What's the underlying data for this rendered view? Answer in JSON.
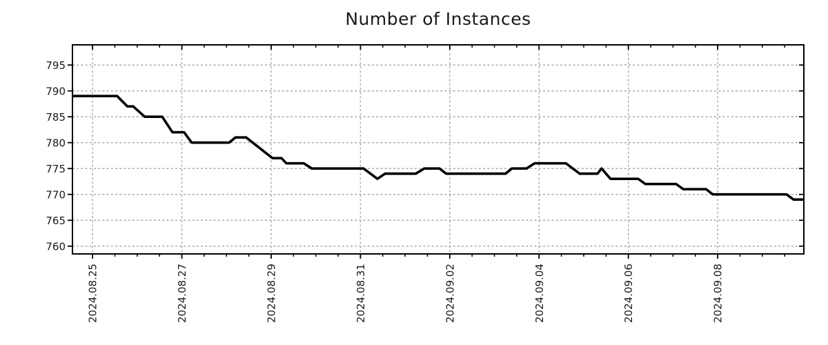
{
  "page": {
    "background": "#ffffff"
  },
  "chart_data": {
    "type": "line",
    "title": "Number of Instances",
    "xlabel": "",
    "ylabel": "",
    "legend": "none",
    "grid": {
      "show": true,
      "color": "#a8a8a8",
      "dash": "3 3.2"
    },
    "border_color": "#000000",
    "text_color": "#1a1a1a",
    "y_axis": {
      "range": [
        758.5,
        798.9
      ],
      "ticks": [
        760,
        765,
        770,
        775,
        780,
        785,
        790,
        795
      ]
    },
    "x_axis": {
      "unit": "days since 2024.08.25 00:00",
      "range": [
        -0.45,
        15.93
      ],
      "minor_tick_interval": 0.5,
      "label_rotation": -90,
      "major_ticks": [
        {
          "d": 0,
          "label": "2024.08.25"
        },
        {
          "d": 2,
          "label": "2024.08.27"
        },
        {
          "d": 4,
          "label": "2024.08.29"
        },
        {
          "d": 6,
          "label": "2024.08.31"
        },
        {
          "d": 8,
          "label": "2024.09.02"
        },
        {
          "d": 10,
          "label": "2024.09.04"
        },
        {
          "d": 12,
          "label": "2024.09.06"
        },
        {
          "d": 14,
          "label": "2024.09.08"
        }
      ]
    },
    "series": [
      {
        "name": "instances",
        "color": "#000000",
        "line_width": 3.6,
        "points": [
          [
            -0.45,
            789
          ],
          [
            0.55,
            789
          ],
          [
            0.78,
            787
          ],
          [
            0.91,
            787
          ],
          [
            1.17,
            785
          ],
          [
            1.56,
            785
          ],
          [
            1.79,
            782
          ],
          [
            2.05,
            782
          ],
          [
            2.22,
            780
          ],
          [
            3.06,
            780
          ],
          [
            3.2,
            781
          ],
          [
            3.44,
            781
          ],
          [
            4.03,
            777
          ],
          [
            4.23,
            777
          ],
          [
            4.34,
            776
          ],
          [
            4.73,
            776
          ],
          [
            4.91,
            775
          ],
          [
            6.07,
            775
          ],
          [
            6.38,
            773
          ],
          [
            6.55,
            774
          ],
          [
            7.24,
            774
          ],
          [
            7.43,
            775
          ],
          [
            7.77,
            775
          ],
          [
            7.92,
            774
          ],
          [
            9.25,
            774
          ],
          [
            9.39,
            775
          ],
          [
            9.72,
            775
          ],
          [
            9.9,
            776
          ],
          [
            10.6,
            776
          ],
          [
            10.91,
            774
          ],
          [
            11.31,
            774
          ],
          [
            11.4,
            775
          ],
          [
            11.6,
            773
          ],
          [
            12.22,
            773
          ],
          [
            12.38,
            772
          ],
          [
            13.07,
            772
          ],
          [
            13.23,
            771
          ],
          [
            13.74,
            771
          ],
          [
            13.89,
            770
          ],
          [
            15.54,
            770
          ],
          [
            15.7,
            769
          ],
          [
            15.93,
            769
          ]
        ]
      }
    ]
  }
}
